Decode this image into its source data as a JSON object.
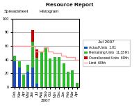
{
  "chart_data": {
    "type": "bar",
    "stacked": true,
    "title": "Resource Report",
    "annotations": [
      "Spreadsheet",
      "Histogram"
    ],
    "x_label": "2007",
    "legend_title": "Jul 2007",
    "categories": [
      "Feb",
      "Mar",
      "Apr",
      "May",
      "Jun",
      "Jul",
      "Aug",
      "Sep",
      "Oct",
      "Nov",
      "Dec",
      "Jan",
      "Feb",
      "Mar",
      "Apr"
    ],
    "series": [
      {
        "name": "Actual Units",
        "color": "#1a4fc4",
        "legend_value": "1.81",
        "values": [
          38,
          28,
          0,
          22,
          28,
          5,
          0,
          0,
          0,
          0,
          0,
          0,
          0,
          0,
          0
        ]
      },
      {
        "name": "Remaining Units",
        "color": "#2db82d",
        "legend_value": "11.33 Rt",
        "values": [
          8,
          10,
          18,
          10,
          38,
          38,
          52,
          58,
          42,
          44,
          44,
          35,
          22,
          24,
          6
        ]
      },
      {
        "name": "Overallocated Units",
        "color": "#cc0000",
        "legend_value": "60hh",
        "values": [
          0,
          0,
          0,
          0,
          18,
          12,
          0,
          0,
          0,
          0,
          0,
          0,
          0,
          0,
          0
        ]
      },
      {
        "name": "Limit",
        "type": "line",
        "line_style": "step",
        "color": "#ff9999",
        "legend_value": "60hh",
        "values": [
          60,
          60,
          60,
          60,
          60,
          52,
          52,
          58,
          52,
          50,
          50,
          46,
          44,
          44,
          40
        ]
      }
    ],
    "ylim": [
      0,
      100
    ],
    "yticks": [
      0,
      20,
      40,
      60,
      80,
      100
    ],
    "grid": true
  }
}
